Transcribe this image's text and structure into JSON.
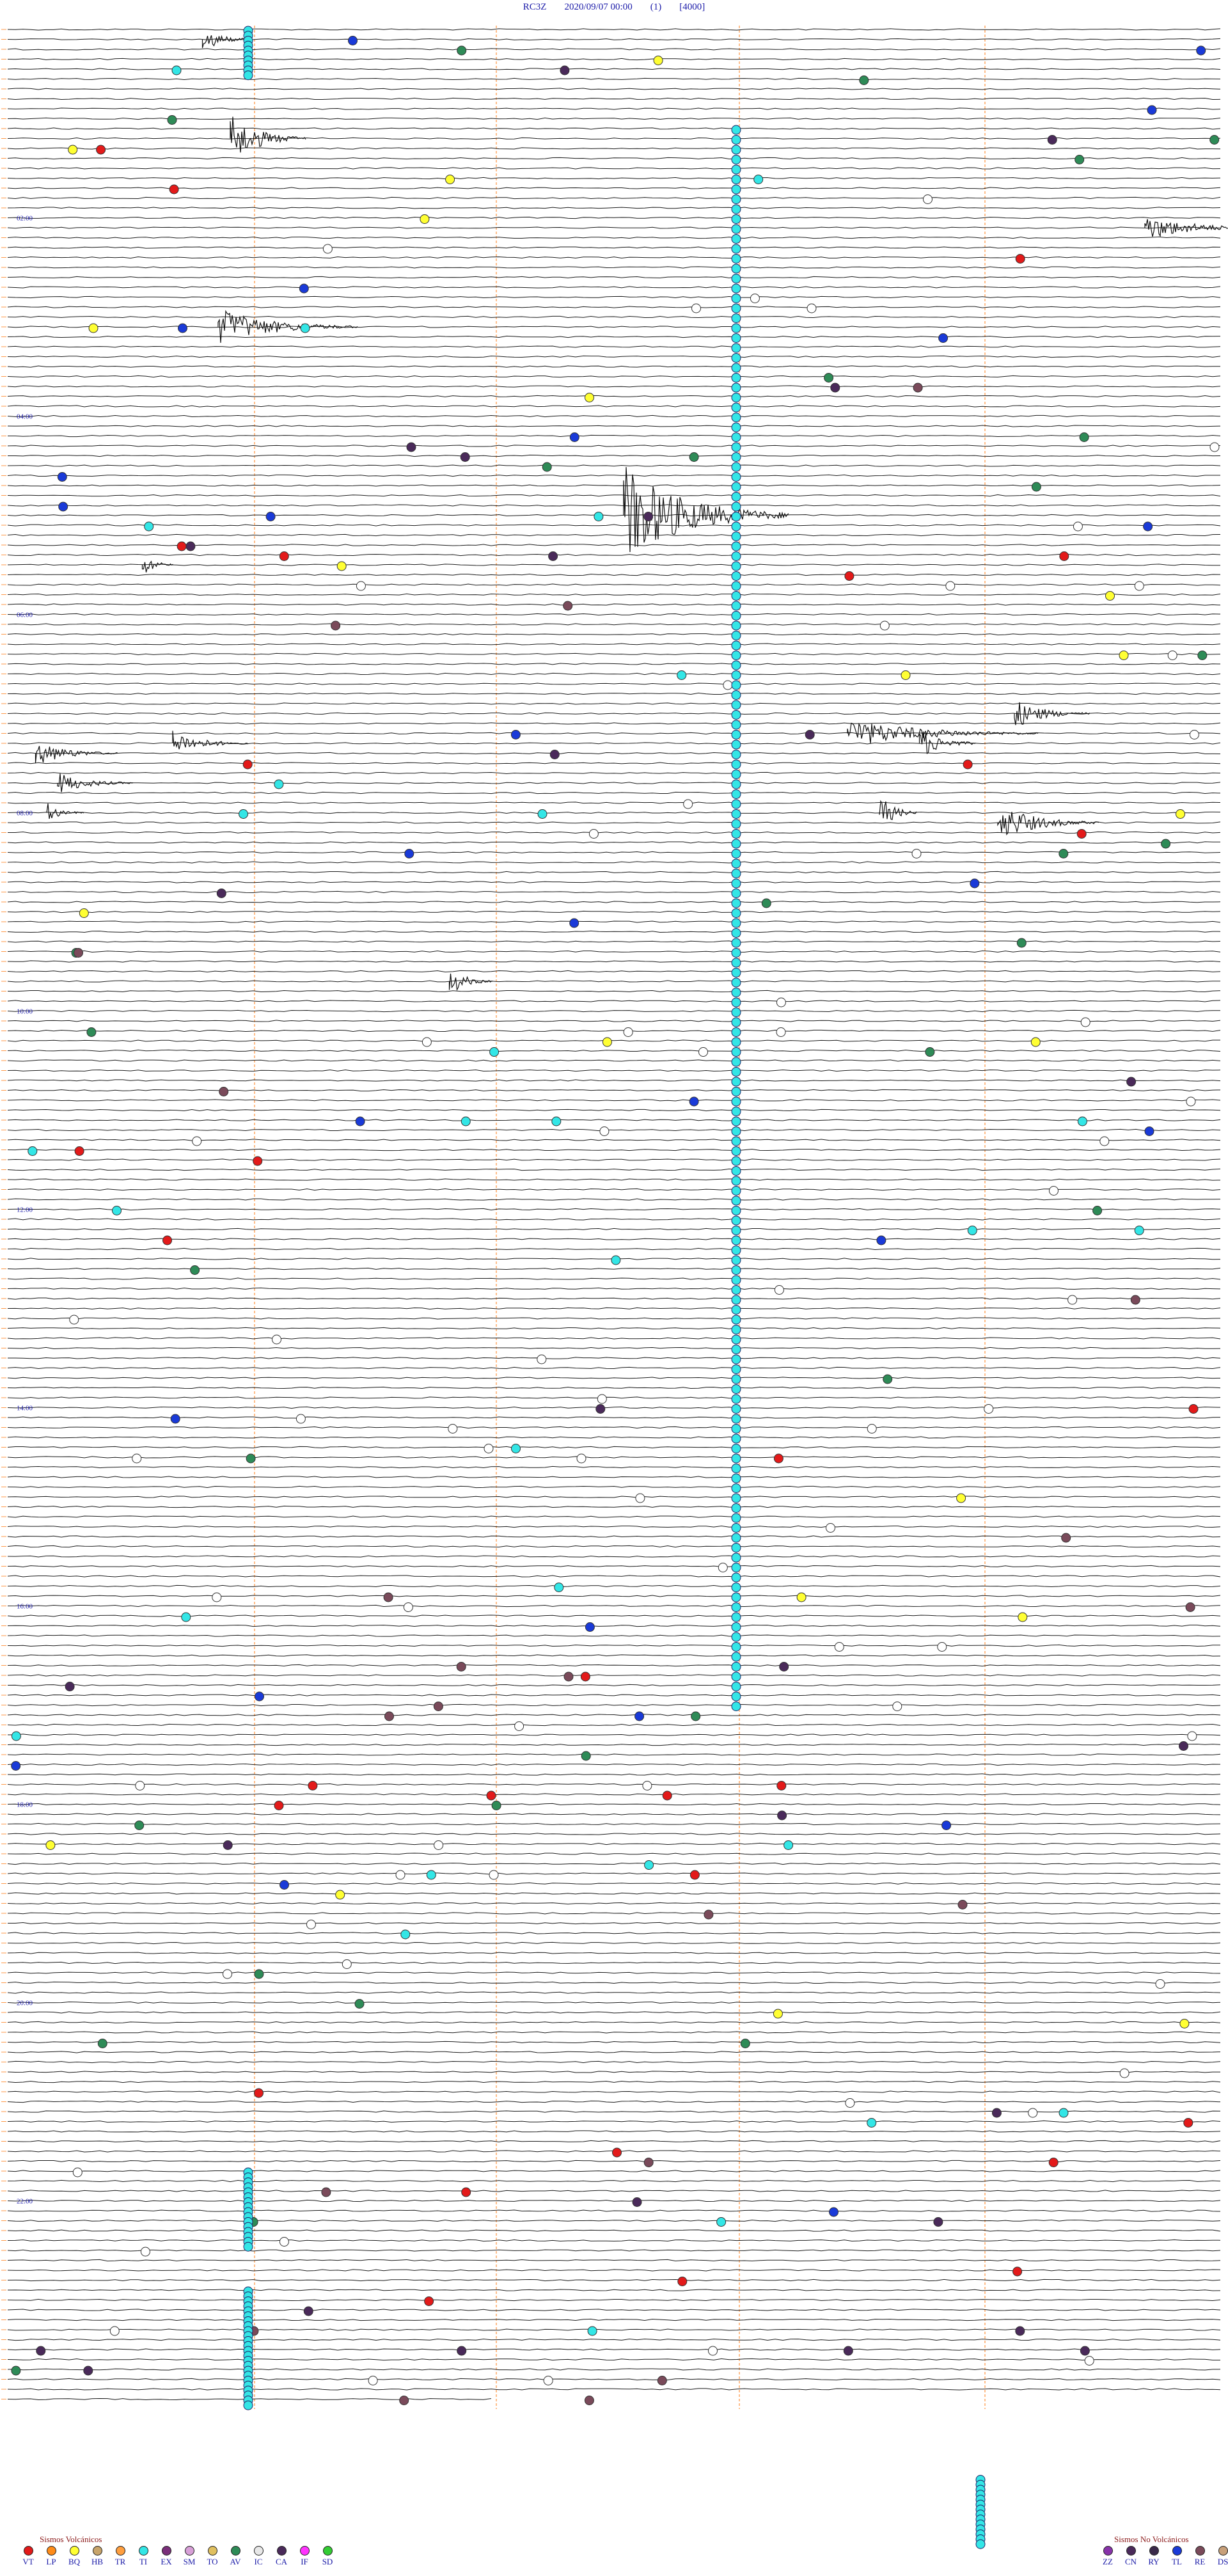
{
  "header": {
    "station": "RC3Z",
    "date": "2020/09/07 00:00",
    "index": "(1)",
    "range": "[4000]"
  },
  "hour_labels": [
    "02:00",
    "04:00",
    "06:00",
    "08:00",
    "10:00",
    "12:00",
    "14:00",
    "16:00",
    "18:00",
    "20:00",
    "22:00"
  ],
  "legend_volcanic": {
    "title": "Sismos Volcánicos",
    "items": [
      {
        "code": "VT",
        "color": "#e31a1a"
      },
      {
        "code": "LP",
        "color": "#ff8c1a"
      },
      {
        "code": "BQ",
        "color": "#ffff33"
      },
      {
        "code": "HB",
        "color": "#c8a46a"
      },
      {
        "code": "TR",
        "color": "#ff9f40"
      },
      {
        "code": "TI",
        "color": "#33e6e6"
      },
      {
        "code": "EX",
        "color": "#7a2f7a"
      },
      {
        "code": "SM",
        "color": "#d8a0d8"
      },
      {
        "code": "TO",
        "color": "#e0c060"
      },
      {
        "code": "AV",
        "color": "#2e8b57"
      },
      {
        "code": "IC",
        "color": "#e8e8e8"
      },
      {
        "code": "CA",
        "color": "#4a2a5a"
      },
      {
        "code": "IF",
        "color": "#ff33ff"
      },
      {
        "code": "SD",
        "color": "#33cc33"
      }
    ]
  },
  "legend_nonvolcanic": {
    "title": "Sismos No Volcánicos",
    "items": [
      {
        "code": "ZZ",
        "color": "#8833aa"
      },
      {
        "code": "CN",
        "color": "#4a2a5a"
      },
      {
        "code": "RY",
        "color": "#3a2a4a"
      },
      {
        "code": "TL",
        "color": "#1a3ad8"
      },
      {
        "code": "RE",
        "color": "#7a4a5a"
      },
      {
        "code": "DS",
        "color": "#c8a07a"
      }
    ]
  }
}
